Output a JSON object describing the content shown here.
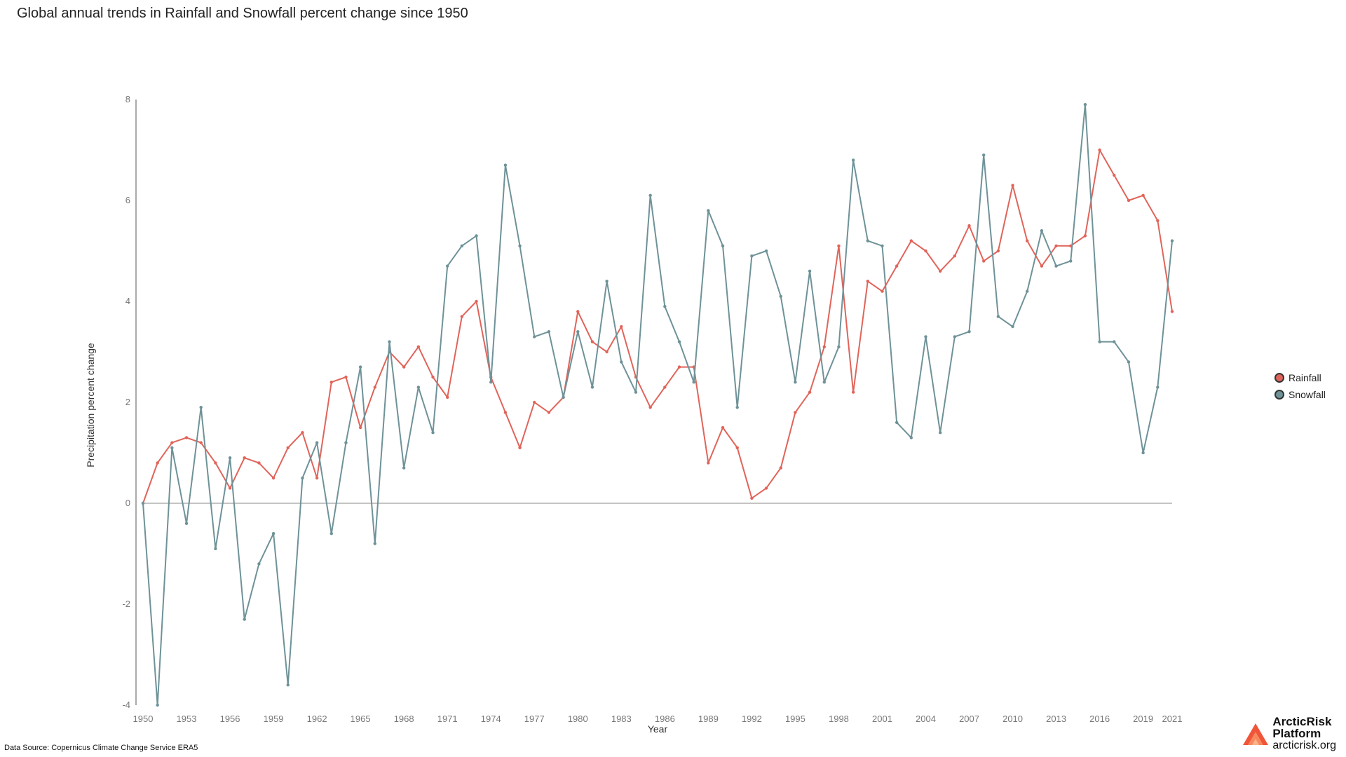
{
  "title": "Global annual trends in Rainfall and Snowfall percent change since 1950",
  "source_text": "Data Source: Copernicus Climate Change Service ERA5",
  "brand": {
    "name_line1": "ArcticRisk",
    "name_line2": "Platform",
    "url": "arcticrisk.org"
  },
  "chart_data": {
    "type": "line",
    "title": "Global annual trends in Rainfall and Snowfall percent change since 1950",
    "xlabel": "Year",
    "ylabel": "Precipitation percent change",
    "xlim": [
      1950,
      2021
    ],
    "ylim": [
      -4,
      8
    ],
    "x_ticks": [
      1950,
      1953,
      1956,
      1959,
      1962,
      1965,
      1968,
      1971,
      1974,
      1977,
      1980,
      1983,
      1986,
      1989,
      1992,
      1995,
      1998,
      2001,
      2004,
      2007,
      2010,
      2013,
      2016,
      2019,
      2021
    ],
    "y_ticks": [
      -4,
      -2,
      0,
      2,
      4,
      6,
      8
    ],
    "grid": false,
    "zero_line": true,
    "legend_position": "right",
    "x": [
      1950,
      1951,
      1952,
      1953,
      1954,
      1955,
      1956,
      1957,
      1958,
      1959,
      1960,
      1961,
      1962,
      1963,
      1964,
      1965,
      1966,
      1967,
      1968,
      1969,
      1970,
      1971,
      1972,
      1973,
      1974,
      1975,
      1976,
      1977,
      1978,
      1979,
      1980,
      1981,
      1982,
      1983,
      1984,
      1985,
      1986,
      1987,
      1988,
      1989,
      1990,
      1991,
      1992,
      1993,
      1994,
      1995,
      1996,
      1997,
      1998,
      1999,
      2000,
      2001,
      2002,
      2003,
      2004,
      2005,
      2006,
      2007,
      2008,
      2009,
      2010,
      2011,
      2012,
      2013,
      2014,
      2015,
      2016,
      2017,
      2018,
      2019,
      2020,
      2021
    ],
    "series": [
      {
        "name": "Rainfall",
        "color": "#e0645a",
        "values": [
          0.0,
          0.8,
          1.2,
          1.3,
          1.2,
          0.8,
          0.3,
          0.9,
          0.8,
          0.5,
          1.1,
          1.4,
          0.5,
          2.4,
          2.5,
          1.5,
          2.3,
          3.0,
          2.7,
          3.1,
          2.5,
          2.1,
          3.7,
          4.0,
          2.5,
          1.8,
          1.1,
          2.0,
          1.8,
          2.1,
          3.8,
          3.2,
          3.0,
          3.5,
          2.5,
          1.9,
          2.3,
          2.7,
          2.7,
          0.8,
          1.5,
          1.1,
          0.1,
          0.3,
          0.7,
          1.8,
          2.2,
          3.1,
          5.1,
          2.2,
          4.4,
          4.2,
          4.7,
          5.2,
          5.0,
          4.6,
          4.9,
          5.5,
          4.8,
          5.0,
          6.3,
          5.2,
          4.7,
          5.1,
          5.1,
          5.3,
          7.0,
          6.5,
          6.0,
          6.1,
          5.6,
          3.8
        ]
      },
      {
        "name": "Snowfall",
        "color": "#6e9298",
        "values": [
          0.0,
          -4.0,
          1.1,
          -0.4,
          1.9,
          -0.9,
          0.9,
          -2.3,
          -1.2,
          -0.6,
          -3.6,
          0.5,
          1.2,
          -0.6,
          1.2,
          2.7,
          -0.8,
          3.2,
          0.7,
          2.3,
          1.4,
          4.7,
          5.1,
          5.3,
          2.4,
          6.7,
          5.1,
          3.3,
          3.4,
          2.1,
          3.4,
          2.3,
          4.4,
          2.8,
          2.2,
          6.1,
          3.9,
          3.2,
          2.4,
          5.8,
          5.1,
          1.9,
          4.9,
          5.0,
          4.1,
          2.4,
          4.6,
          2.4,
          3.1,
          6.8,
          5.2,
          5.1,
          1.6,
          1.3,
          3.3,
          1.4,
          3.3,
          3.4,
          6.9,
          3.7,
          3.5,
          4.2,
          5.4,
          4.7,
          4.8,
          7.9,
          3.2,
          3.2,
          2.8,
          1.0,
          2.3,
          5.2
        ]
      }
    ]
  }
}
